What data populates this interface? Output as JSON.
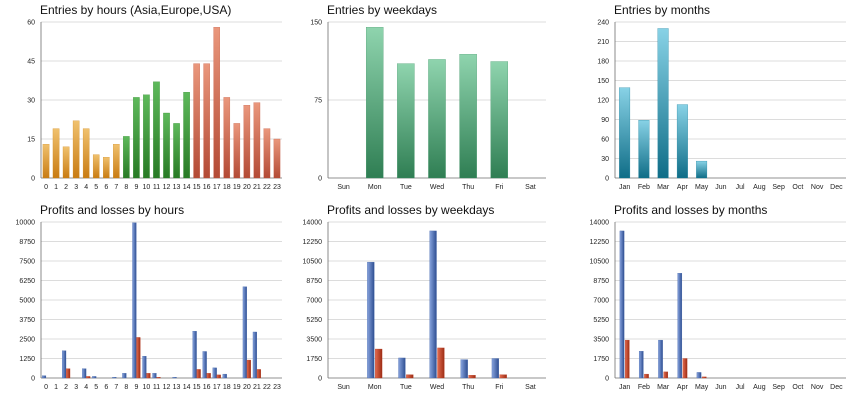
{
  "colors": {
    "grid": "#b9b9b9",
    "axis": "#6e6e6e",
    "hours_asia": "#d08a1e",
    "hours_europe": "#2f8b2a",
    "hours_usa": "#c45a44",
    "weekdays": "#3f9466",
    "months": "#177f9c",
    "profit": "#3d61a7",
    "loss": "#b7381c"
  },
  "chart_data": [
    {
      "id": "entries-hours",
      "type": "bar",
      "title": "Entries by hours (Asia,Europe,USA)",
      "categories": [
        "0",
        "1",
        "2",
        "3",
        "4",
        "5",
        "6",
        "7",
        "8",
        "9",
        "10",
        "11",
        "12",
        "13",
        "14",
        "15",
        "16",
        "17",
        "18",
        "19",
        "20",
        "21",
        "22",
        "23"
      ],
      "series": [
        {
          "values": [
            13,
            19,
            12,
            22,
            19,
            9,
            8,
            13,
            16,
            31,
            32,
            37,
            25,
            21,
            33,
            44,
            44,
            58,
            31,
            21,
            28,
            29,
            19,
            15
          ],
          "category_colors": [
            "hours_asia",
            "hours_asia",
            "hours_asia",
            "hours_asia",
            "hours_asia",
            "hours_asia",
            "hours_asia",
            "hours_asia",
            "hours_europe",
            "hours_europe",
            "hours_europe",
            "hours_europe",
            "hours_europe",
            "hours_europe",
            "hours_europe",
            "hours_usa",
            "hours_usa",
            "hours_usa",
            "hours_usa",
            "hours_usa",
            "hours_usa",
            "hours_usa",
            "hours_usa",
            "hours_usa"
          ]
        }
      ],
      "ylim": [
        0,
        60
      ],
      "yticks": [
        0,
        15,
        30,
        45,
        60
      ],
      "grid": true
    },
    {
      "id": "entries-weekdays",
      "type": "bar",
      "title": "Entries by weekdays",
      "categories": [
        "Sun",
        "Mon",
        "Tue",
        "Wed",
        "Thu",
        "Fri",
        "Sat"
      ],
      "series": [
        {
          "values": [
            0,
            145,
            110,
            114,
            119,
            112,
            0
          ],
          "color": "weekdays"
        }
      ],
      "ylim": [
        0,
        150
      ],
      "yticks": [
        0,
        75,
        150
      ],
      "grid": true
    },
    {
      "id": "entries-months",
      "type": "bar",
      "title": "Entries by months",
      "categories": [
        "Jan",
        "Feb",
        "Mar",
        "Apr",
        "May",
        "Jun",
        "Jul",
        "Aug",
        "Sep",
        "Oct",
        "Nov",
        "Dec"
      ],
      "series": [
        {
          "values": [
            139,
            89,
            230,
            113,
            26,
            0,
            0,
            0,
            0,
            0,
            0,
            0
          ],
          "color": "months"
        }
      ],
      "ylim": [
        0,
        240
      ],
      "yticks": [
        0,
        30,
        60,
        90,
        120,
        150,
        180,
        210,
        240
      ],
      "grid": true
    },
    {
      "id": "profits-hours",
      "type": "bar",
      "title": "Profits and losses by hours",
      "categories": [
        "0",
        "1",
        "2",
        "3",
        "4",
        "5",
        "6",
        "7",
        "8",
        "9",
        "10",
        "11",
        "12",
        "13",
        "14",
        "15",
        "16",
        "17",
        "18",
        "19",
        "20",
        "21",
        "22",
        "23"
      ],
      "series": [
        {
          "values": [
            150,
            0,
            1750,
            0,
            600,
            100,
            0,
            50,
            300,
            9950,
            1400,
            300,
            0,
            50,
            0,
            3000,
            1700,
            650,
            250,
            0,
            5850,
            2950,
            0,
            0
          ],
          "color": "profit"
        },
        {
          "values": [
            0,
            0,
            600,
            0,
            100,
            0,
            0,
            0,
            0,
            2600,
            300,
            50,
            0,
            0,
            0,
            550,
            300,
            200,
            0,
            0,
            1150,
            550,
            0,
            0
          ],
          "color": "loss"
        }
      ],
      "ylim": [
        0,
        10000
      ],
      "yticks": [
        0,
        1250,
        2500,
        3750,
        5000,
        6250,
        7500,
        8750,
        10000
      ],
      "grid": true
    },
    {
      "id": "profits-weekdays",
      "type": "bar",
      "title": "Profits and losses by weekdays",
      "categories": [
        "Sun",
        "Mon",
        "Tue",
        "Wed",
        "Thu",
        "Fri",
        "Sat"
      ],
      "series": [
        {
          "values": [
            0,
            10400,
            1800,
            13200,
            1650,
            1750,
            0
          ],
          "color": "profit"
        },
        {
          "values": [
            0,
            2600,
            300,
            2700,
            250,
            300,
            0
          ],
          "color": "loss"
        }
      ],
      "ylim": [
        0,
        14000
      ],
      "yticks": [
        0,
        1750,
        3500,
        5250,
        7000,
        8750,
        10500,
        12250,
        14000
      ],
      "grid": true
    },
    {
      "id": "profits-months",
      "type": "bar",
      "title": "Profits and losses by months",
      "categories": [
        "Jan",
        "Feb",
        "Mar",
        "Apr",
        "May",
        "Jun",
        "Jul",
        "Aug",
        "Sep",
        "Oct",
        "Nov",
        "Dec"
      ],
      "series": [
        {
          "values": [
            13200,
            2400,
            3400,
            9400,
            500,
            0,
            0,
            0,
            0,
            0,
            0,
            0
          ],
          "color": "profit"
        },
        {
          "values": [
            3400,
            350,
            550,
            1750,
            100,
            0,
            0,
            0,
            0,
            0,
            0,
            0
          ],
          "color": "loss"
        }
      ],
      "ylim": [
        0,
        14000
      ],
      "yticks": [
        0,
        1750,
        3500,
        5250,
        7000,
        8750,
        10500,
        12250,
        14000
      ],
      "grid": true
    }
  ]
}
